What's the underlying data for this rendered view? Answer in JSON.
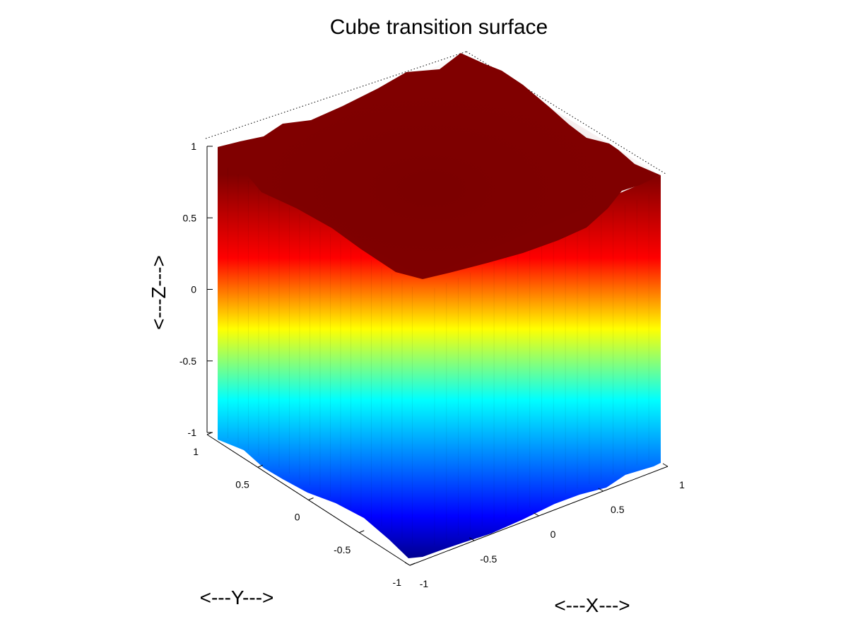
{
  "chart_data": {
    "type": "surface",
    "title": "Cube transition surface",
    "xlabel": "<---X--->",
    "ylabel": "<---Y--->",
    "zlabel": "<---Z--->",
    "xlim": [
      -1,
      1
    ],
    "ylim": [
      -1,
      1
    ],
    "zlim": [
      -1,
      1
    ],
    "x_ticks": [
      "-1",
      "-0.5",
      "0",
      "0.5",
      "1"
    ],
    "y_ticks": [
      "-1",
      "-0.5",
      "0",
      "0.5",
      "1"
    ],
    "z_ticks": [
      "-1",
      "-0.5",
      "0",
      "0.5",
      "1"
    ],
    "colormap": "jet",
    "colormap_stops": [
      "#00008f",
      "#0000ff",
      "#00ffff",
      "#ffff00",
      "#ff0000",
      "#800000"
    ],
    "grid": false,
    "box": true
  }
}
